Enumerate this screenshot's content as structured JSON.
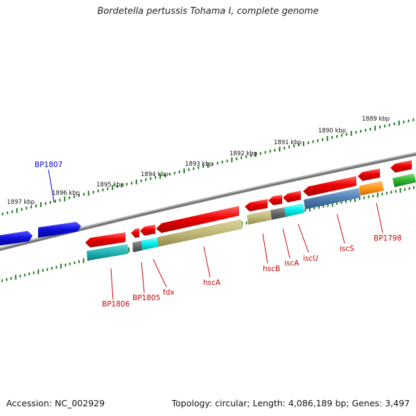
{
  "map": {
    "title": "Bordetella pertussis Tohama I, complete genome",
    "accession": "Accession: NC_002929",
    "summary": "Topology: circular; Length: 4,086,189 bp; Genes: 3,497"
  },
  "colors": {
    "backbone": "#7a7a7a",
    "ticks": "#1e7a1e",
    "tick_label": "#111111",
    "gene_label": "#cc0000",
    "blue_label": "#0000cc",
    "arrow_red": "#ee0000",
    "arrow_blue": "#1010dd",
    "arrow_green": "#33bb33",
    "box_teal": "#22b5b5",
    "box_cyan": "#00eeee",
    "box_grey": "#666666",
    "box_khaki": "#bfb877",
    "box_steel": "#4f7fb0",
    "box_orange": "#ff9a1a"
  },
  "scale_labels": [
    "1897 kbp",
    "1896 kbp",
    "1895 kbp",
    "1894 kbp",
    "1893 kbp",
    "1892 kbp",
    "1891 kbp",
    "1890 kbp",
    "1889 kbp"
  ],
  "gene_labels": {
    "BP1807": "BP1807",
    "BP1806": "BP1806",
    "BP1805": "BP1805",
    "fdx": "fdx",
    "hscA": "hscA",
    "hscB": "hscB",
    "iscA": "iscA",
    "iscU": "iscU",
    "iscS": "iscS",
    "BP1798": "BP1798"
  }
}
